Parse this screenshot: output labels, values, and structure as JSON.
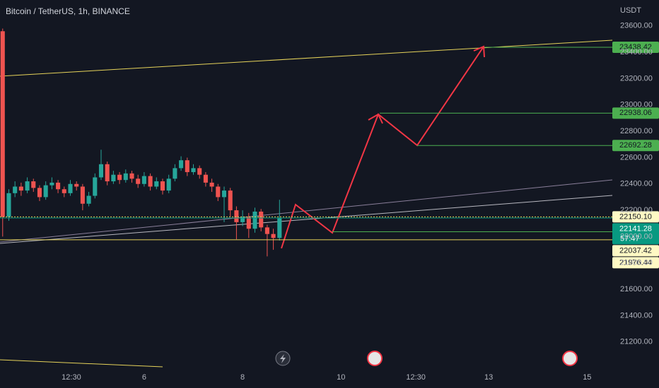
{
  "chart_data": {
    "type": "candlestick",
    "title": "Bitcoin / TetherUS, 1h, BINANCE",
    "y_axis_label": "USDT",
    "x": [
      -69,
      -66,
      -63,
      -60,
      -57,
      -54,
      -51,
      -48,
      -45,
      -42,
      -39,
      -36,
      -33,
      -30,
      -27,
      -24,
      -21,
      -18,
      -15,
      -12,
      -9,
      -6,
      -3,
      0,
      3,
      6,
      9,
      12,
      15,
      18,
      21,
      24,
      27,
      30,
      33,
      36,
      39,
      42,
      45,
      48,
      51,
      54,
      57,
      60,
      63,
      66
    ],
    "open": [
      23560,
      22150,
      22330,
      22380,
      22350,
      22420,
      22370,
      22300,
      22390,
      22410,
      22360,
      22330,
      22400,
      22380,
      22250,
      22310,
      22450,
      22550,
      22420,
      22470,
      22430,
      22480,
      22440,
      22400,
      22460,
      22380,
      22420,
      22350,
      22440,
      22520,
      22580,
      22490,
      22520,
      22470,
      22410,
      22380,
      22300,
      22350,
      22200,
      22110,
      22150,
      22060,
      22190,
      22070,
      22020,
      21990
    ],
    "high": [
      23580,
      22360,
      22420,
      22410,
      22450,
      22440,
      22390,
      22420,
      22450,
      22430,
      22380,
      22430,
      22420,
      22400,
      22340,
      22480,
      22660,
      22570,
      22500,
      22490,
      22510,
      22500,
      22470,
      22490,
      22480,
      22450,
      22440,
      22470,
      22550,
      22610,
      22600,
      22550,
      22540,
      22490,
      22440,
      22400,
      22380,
      22370,
      22230,
      22200,
      22180,
      22220,
      22210,
      22090,
      22060,
      22280
    ],
    "low": [
      22000,
      22120,
      22300,
      22310,
      22330,
      22340,
      22270,
      22280,
      22360,
      22330,
      22300,
      22310,
      22350,
      22200,
      22230,
      22290,
      22430,
      22390,
      22400,
      22400,
      22410,
      22410,
      22370,
      22380,
      22350,
      22360,
      22320,
      22330,
      22420,
      22500,
      22460,
      22470,
      22440,
      22380,
      22340,
      22270,
      22110,
      22150,
      21980,
      22080,
      21990,
      22030,
      22040,
      21850,
      21900,
      21970
    ],
    "close": [
      22150,
      22330,
      22380,
      22350,
      22420,
      22370,
      22300,
      22390,
      22410,
      22360,
      22330,
      22400,
      22380,
      22250,
      22310,
      22450,
      22550,
      22420,
      22470,
      22430,
      22480,
      22440,
      22400,
      22460,
      22380,
      22420,
      22350,
      22440,
      22520,
      22580,
      22490,
      22520,
      22470,
      22410,
      22380,
      22300,
      22350,
      22200,
      22110,
      22150,
      22060,
      22190,
      22070,
      22020,
      21990,
      22141.28
    ],
    "up_color": "#26a69a",
    "down_color": "#ef5350",
    "xlim": [
      -70.3,
      228.3
    ],
    "xticks": [
      {
        "value": -35.5,
        "label": "12:30"
      },
      {
        "value": 0,
        "label": "6"
      },
      {
        "value": 48,
        "label": "8"
      },
      {
        "value": 96,
        "label": "10"
      },
      {
        "value": 132.5,
        "label": "12:30"
      },
      {
        "value": 168,
        "label": "13"
      },
      {
        "value": 216,
        "label": "15"
      }
    ],
    "ylim": [
      20946.79,
      23797.14
    ],
    "yticks": [
      {
        "value": 21200,
        "label": "21200.00"
      },
      {
        "value": 21400,
        "label": "21400.00"
      },
      {
        "value": 21600,
        "label": "21600.00"
      },
      {
        "value": 21800,
        "label": "21800.00"
      },
      {
        "value": 22000,
        "label": "22000.00"
      },
      {
        "value": 22200,
        "label": "22200.00"
      },
      {
        "value": 22400,
        "label": "22400.00"
      },
      {
        "value": 22600,
        "label": "22600.00"
      },
      {
        "value": 22800,
        "label": "22800.00"
      },
      {
        "value": 23000,
        "label": "23000.00"
      },
      {
        "value": 23200,
        "label": "23200.00"
      },
      {
        "value": 23400,
        "label": "23400.00"
      },
      {
        "value": 23600,
        "label": "23600.00"
      }
    ],
    "grid": false,
    "price_tags": [
      {
        "value": 23438.42,
        "label": "23438.42",
        "color": "#4caf50",
        "text_color": "#131722"
      },
      {
        "value": 22938.06,
        "label": "22938.06",
        "color": "#4caf50",
        "text_color": "#131722"
      },
      {
        "value": 22692.28,
        "label": "22692.28",
        "color": "#4caf50",
        "text_color": "#131722"
      },
      {
        "value": 22150.1,
        "label": "22150.10",
        "color": "#fff9c4",
        "text_color": "#131722"
      },
      {
        "value": 22141.28,
        "label": "22141.28",
        "color": "#089981",
        "text_color": "#ffffff",
        "countdown": "57:47"
      },
      {
        "value": 22037.42,
        "label": "22037.42",
        "color": "#fff9c4",
        "text_color": "#131722"
      },
      {
        "value": 21976.44,
        "label": "21976.44",
        "color": "#fff9c4",
        "text_color": "#131722"
      }
    ]
  }
}
